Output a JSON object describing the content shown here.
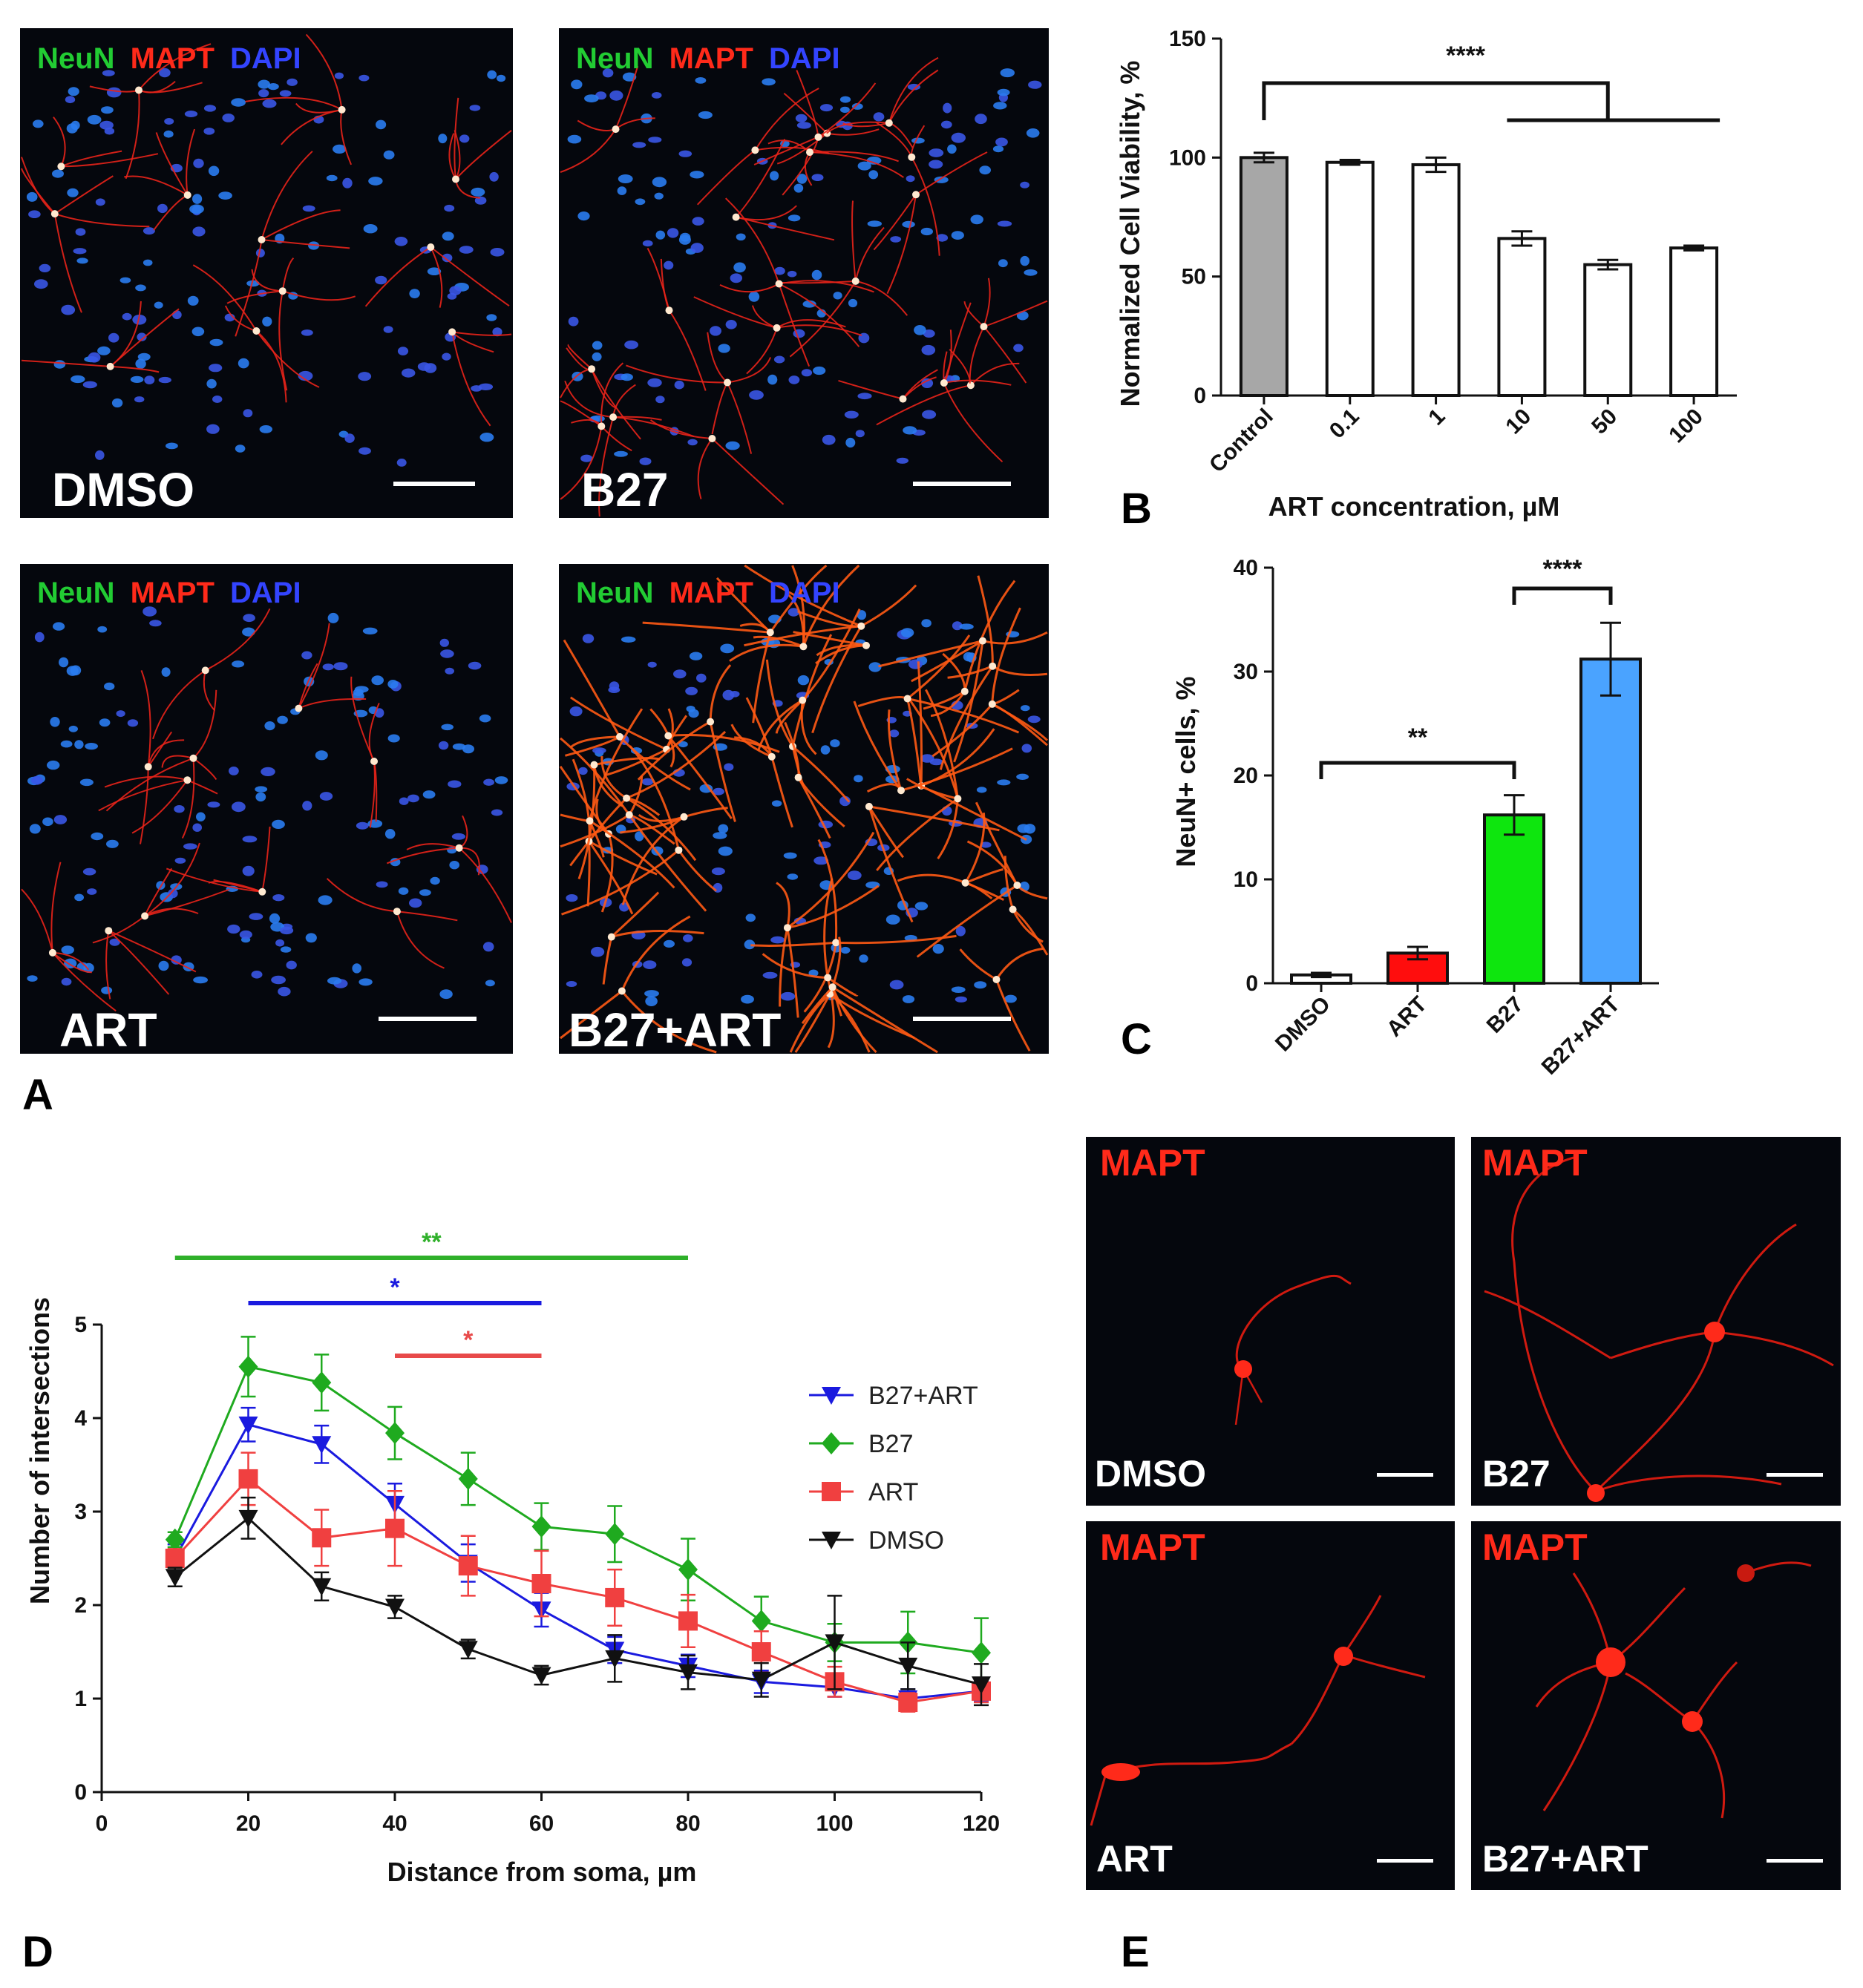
{
  "channel_labels": {
    "neun": "NeuN",
    "mapt": "MAPT",
    "dapi": "DAPI"
  },
  "colors": {
    "neun": "#22cc33",
    "mapt": "#ff2a1a",
    "dapi": "#3344ff",
    "mapt_e": "#ff2a1a",
    "sig_green": "#2fb02a",
    "sig_blue": "#1a1adf",
    "sig_red": "#e84a4a"
  },
  "panel_letters": {
    "a": "A",
    "b": "B",
    "c": "C",
    "d": "D",
    "e": "E"
  },
  "panelA": {
    "conditions": [
      "DMSO",
      "B27",
      "ART",
      "B27+ART"
    ]
  },
  "panelE": {
    "label": "MAPT",
    "conditions": [
      "DMSO",
      "B27",
      "ART",
      "B27+ART"
    ]
  },
  "chart_data": [
    {
      "type": "bar",
      "panel": "B",
      "categories": [
        "Control",
        "0.1",
        "1",
        "10",
        "50",
        "100"
      ],
      "values": [
        100,
        98,
        97,
        66,
        55,
        62
      ],
      "errors": [
        2,
        1,
        3,
        3,
        2,
        1
      ],
      "bar_colors": [
        "#a7a7a7",
        "#ffffff",
        "#ffffff",
        "#ffffff",
        "#ffffff",
        "#ffffff"
      ],
      "xlabel": "ART concentration, µM",
      "ylabel": "Normalized Cell Viability, %",
      "ylim": [
        0,
        150
      ],
      "yticks": [
        0,
        50,
        100,
        150
      ],
      "significance": [
        {
          "label": "****",
          "from": "Control",
          "to": [
            "10",
            "100"
          ]
        }
      ]
    },
    {
      "type": "bar",
      "panel": "C",
      "categories": [
        "DMSO",
        "ART",
        "B27",
        "B27+ART"
      ],
      "values": [
        0.8,
        2.9,
        16.2,
        31.2
      ],
      "errors": [
        0.2,
        0.6,
        1.9,
        3.5
      ],
      "bar_colors": [
        "#ffffff",
        "#ff0d0d",
        "#0ee60e",
        "#4aa3ff"
      ],
      "xlabel": "",
      "ylabel": "NeuN+ cells, %",
      "ylim": [
        0,
        40
      ],
      "yticks": [
        0,
        10,
        20,
        30,
        40
      ],
      "significance": [
        {
          "label": "**",
          "from": "DMSO",
          "to": "B27"
        },
        {
          "label": "****",
          "from": "B27",
          "to": "B27+ART"
        }
      ]
    },
    {
      "type": "line",
      "panel": "D",
      "x": [
        10,
        20,
        30,
        40,
        50,
        60,
        70,
        80,
        90,
        100,
        110,
        120
      ],
      "xlabel": "Distance from soma, µm",
      "ylabel": "Number of intersections",
      "xlim": [
        0,
        120
      ],
      "ylim": [
        0,
        5
      ],
      "xticks": [
        0,
        20,
        40,
        60,
        80,
        100,
        120
      ],
      "yticks": [
        0,
        1,
        2,
        3,
        4,
        5
      ],
      "legend_position": "right",
      "series": [
        {
          "name": "B27+ART",
          "color": "#1a1adf",
          "marker": "triangle-down",
          "values": [
            2.5,
            3.93,
            3.72,
            3.08,
            2.45,
            1.95,
            1.52,
            1.35,
            1.18,
            1.12,
            1.0,
            1.08
          ],
          "errors": [
            0.15,
            0.18,
            0.2,
            0.22,
            0.2,
            0.18,
            0.14,
            0.12,
            0.12,
            0.1,
            0.1,
            0.1
          ]
        },
        {
          "name": "B27",
          "color": "#1faa1f",
          "marker": "diamond",
          "values": [
            2.7,
            4.55,
            4.38,
            3.84,
            3.35,
            2.84,
            2.76,
            2.38,
            1.83,
            1.6,
            1.6,
            1.49
          ],
          "errors": [
            0.08,
            0.32,
            0.3,
            0.28,
            0.28,
            0.25,
            0.3,
            0.33,
            0.26,
            0.2,
            0.33,
            0.37
          ]
        },
        {
          "name": "ART",
          "color": "#f04040",
          "marker": "square",
          "values": [
            2.5,
            3.35,
            2.72,
            2.82,
            2.42,
            2.23,
            2.08,
            1.83,
            1.5,
            1.18,
            0.96,
            1.08
          ],
          "errors": [
            0.1,
            0.28,
            0.3,
            0.4,
            0.32,
            0.35,
            0.3,
            0.28,
            0.22,
            0.16,
            0.1,
            0.12
          ]
        },
        {
          "name": "DMSO",
          "color": "#111111",
          "marker": "triangle-down",
          "values": [
            2.3,
            2.93,
            2.2,
            1.98,
            1.53,
            1.25,
            1.43,
            1.28,
            1.2,
            1.6,
            1.35,
            1.15
          ],
          "errors": [
            0.1,
            0.22,
            0.15,
            0.12,
            0.1,
            0.1,
            0.25,
            0.18,
            0.18,
            0.5,
            0.25,
            0.22
          ]
        }
      ],
      "significance": [
        {
          "label": "**",
          "x_from": 10,
          "x_to": 80,
          "color": "#2fb02a"
        },
        {
          "label": "*",
          "x_from": 20,
          "x_to": 60,
          "color": "#1a1adf"
        },
        {
          "label": "*",
          "x_from": 40,
          "x_to": 60,
          "color": "#e84a4a"
        }
      ]
    }
  ]
}
